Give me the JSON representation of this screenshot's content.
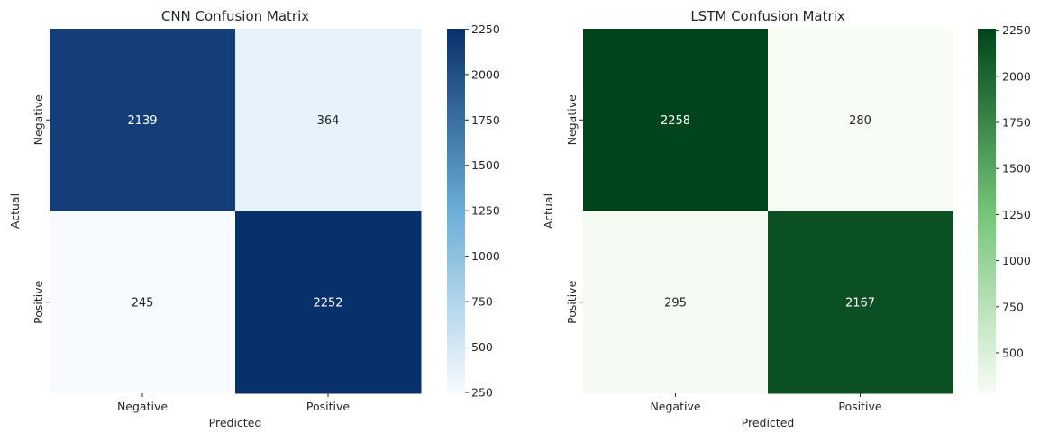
{
  "chart_data": [
    {
      "type": "heatmap",
      "title": "CNN Confusion Matrix",
      "xlabel": "Predicted",
      "ylabel": "Actual",
      "x_categories": [
        "Negative",
        "Positive"
      ],
      "y_categories": [
        "Negative",
        "Positive"
      ],
      "values": [
        [
          2139,
          364
        ],
        [
          245,
          2252
        ]
      ],
      "colormap": "Blues",
      "colors": {
        "low": "#f7fbff",
        "mid": "#6baed6",
        "high": "#08306b"
      },
      "colorbar": {
        "range": [
          245,
          2252
        ],
        "ticks": [
          250,
          500,
          750,
          1000,
          1250,
          1500,
          1750,
          2000,
          2250
        ],
        "tick_labels": [
          "250",
          "500",
          "750",
          "1000",
          "1250",
          "1500",
          "1750",
          "2000",
          "2250"
        ]
      },
      "legend": "right"
    },
    {
      "type": "heatmap",
      "title": "LSTM Confusion Matrix",
      "xlabel": "Predicted",
      "ylabel": "Actual",
      "x_categories": [
        "Negative",
        "Positive"
      ],
      "y_categories": [
        "Negative",
        "Positive"
      ],
      "values": [
        [
          2258,
          280
        ],
        [
          295,
          2167
        ]
      ],
      "colormap": "Greens",
      "colors": {
        "low": "#f7fcf5",
        "mid": "#74c476",
        "high": "#00441b"
      },
      "colorbar": {
        "range": [
          280,
          2258
        ],
        "ticks": [
          500,
          750,
          1000,
          1250,
          1500,
          1750,
          2000,
          2250
        ],
        "tick_labels": [
          "500",
          "750",
          "1000",
          "1250",
          "1500",
          "1750",
          "2000",
          "2250"
        ]
      },
      "legend": "right"
    }
  ]
}
